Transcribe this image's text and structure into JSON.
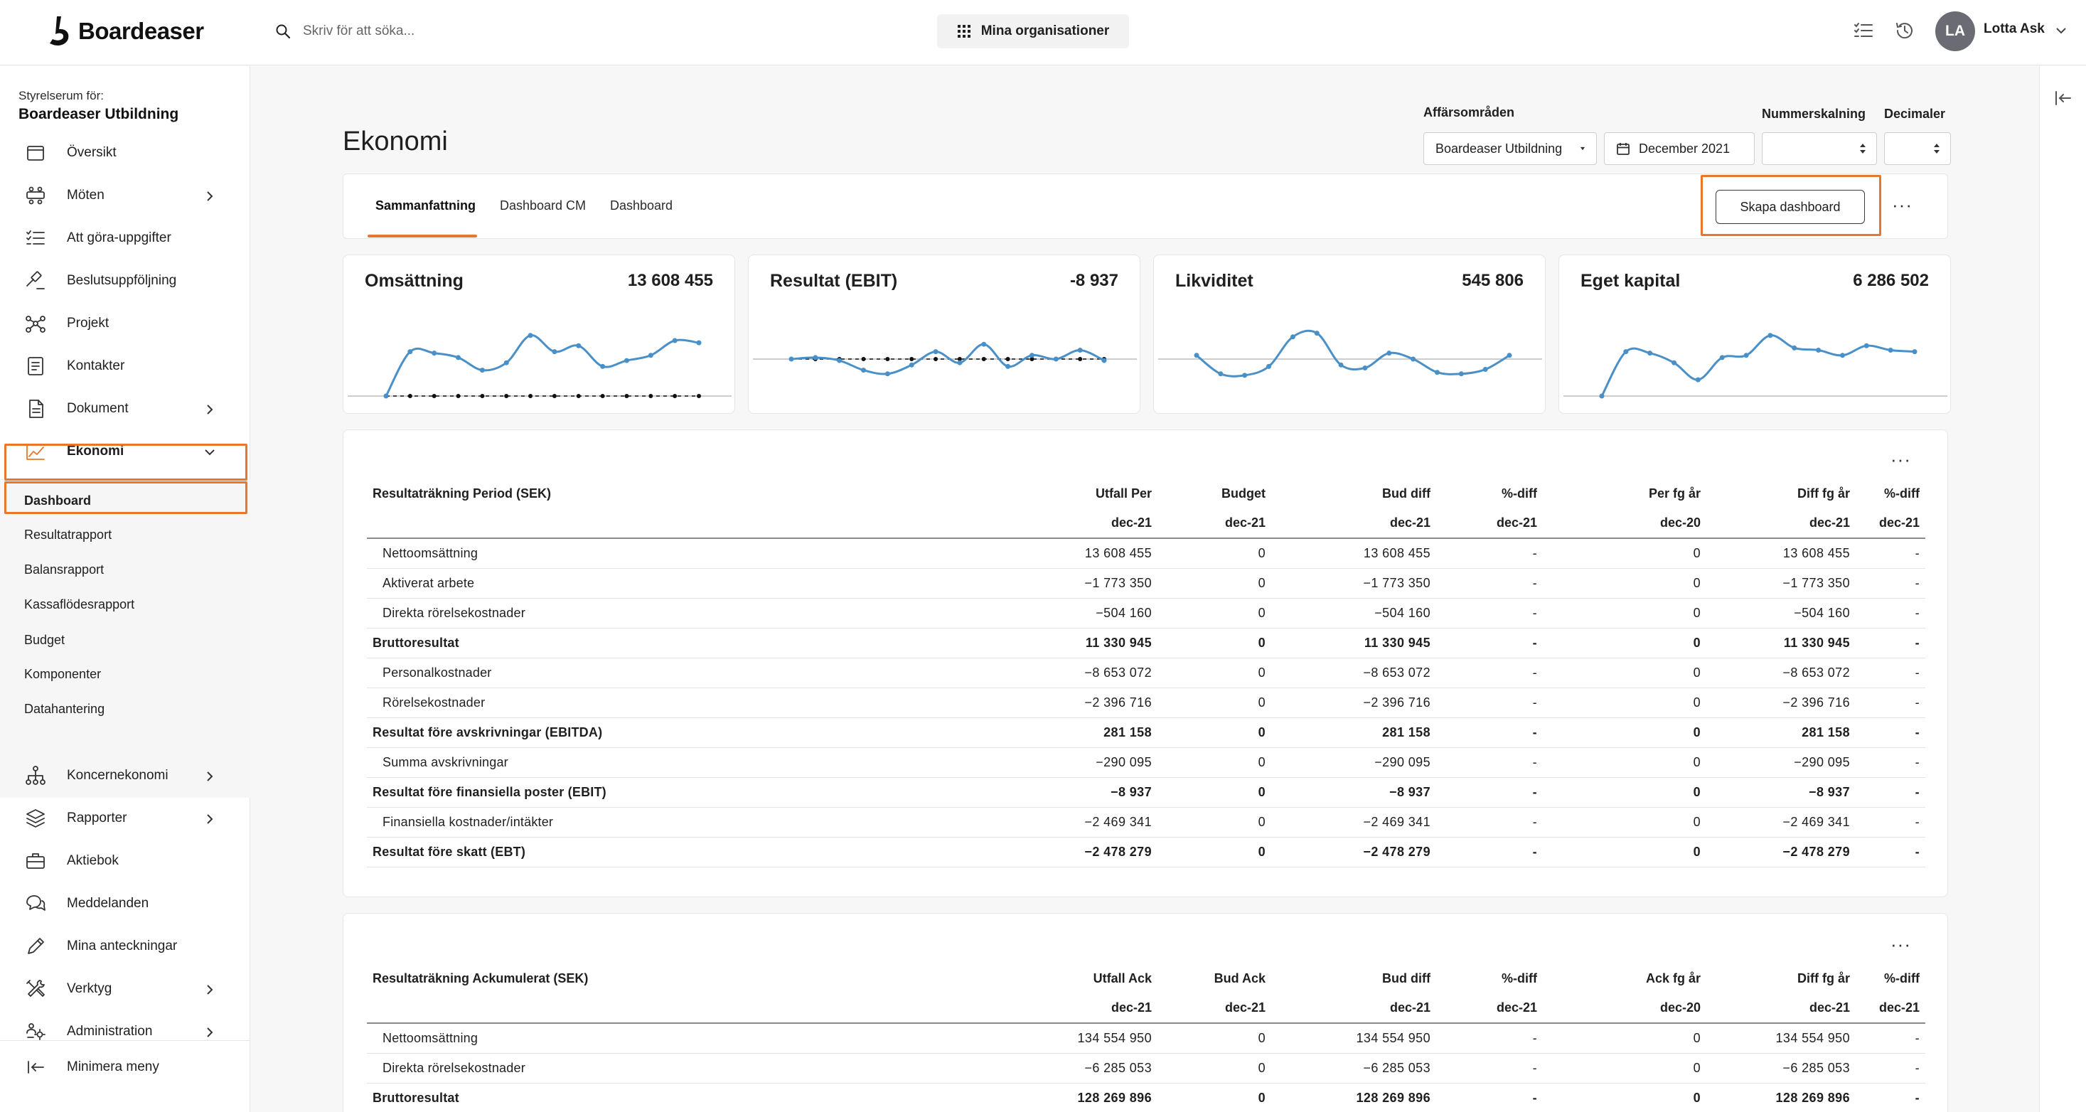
{
  "header": {
    "logo_text": "Boardeaser",
    "search_placeholder": "Skriv för att söka...",
    "org_button": "Mina organisationer",
    "user_initials": "LA",
    "user_name": "Lotta Ask"
  },
  "sidebar": {
    "caption": "Styrelserum för:",
    "org_name": "Boardeaser Utbildning",
    "items": [
      {
        "label": "Översikt",
        "icon": "calendar-icon",
        "chevron": false
      },
      {
        "label": "Möten",
        "icon": "meeting-icon",
        "chevron": true
      },
      {
        "label": "Att göra-uppgifter",
        "icon": "tasks-icon",
        "chevron": false
      },
      {
        "label": "Beslutsuppföljning",
        "icon": "gavel-icon",
        "chevron": false
      },
      {
        "label": "Projekt",
        "icon": "project-icon",
        "chevron": false
      },
      {
        "label": "Kontakter",
        "icon": "contacts-icon",
        "chevron": false
      },
      {
        "label": "Dokument",
        "icon": "document-icon",
        "chevron": true
      },
      {
        "label": "Ekonomi",
        "icon": "chart-line-icon",
        "chevron": true,
        "expanded": true
      },
      {
        "label": "Koncernekonomi",
        "icon": "org-tree-icon",
        "chevron": true
      },
      {
        "label": "Rapporter",
        "icon": "layers-icon",
        "chevron": true
      },
      {
        "label": "Aktiebok",
        "icon": "briefcase-icon",
        "chevron": false
      },
      {
        "label": "Meddelanden",
        "icon": "chat-icon",
        "chevron": false
      },
      {
        "label": "Mina anteckningar",
        "icon": "pen-icon",
        "chevron": false
      },
      {
        "label": "Verktyg",
        "icon": "tools-icon",
        "chevron": true
      },
      {
        "label": "Administration",
        "icon": "admin-icon",
        "chevron": true
      }
    ],
    "subitems": [
      "Dashboard",
      "Resultatrapport",
      "Balansrapport",
      "Kassaflödesrapport",
      "Budget",
      "Komponenter",
      "Datahantering"
    ],
    "minimize": "Minimera meny"
  },
  "page": {
    "title": "Ekonomi",
    "business_area_label": "Affärsområden",
    "business_area_value": "Boardeaser Utbildning",
    "date_value": "December 2021",
    "number_scale_label": "Nummerskalning",
    "decimals_label": "Decimaler"
  },
  "tabs": [
    "Sammanfattning",
    "Dashboard CM",
    "Dashboard"
  ],
  "create_dashboard": "Skapa dashboard",
  "more_glyph": "···",
  "colors": {
    "accent": "#e8772e",
    "line": "#4a90c8"
  },
  "kpis": [
    {
      "title": "Omsättning",
      "value": "13 608 455",
      "series": [
        0.0,
        0.6,
        0.58,
        0.52,
        0.35,
        0.45,
        0.82,
        0.6,
        0.68,
        0.4,
        0.48,
        0.55,
        0.75,
        0.72
      ],
      "baseline": 0.0,
      "baseline_dashed": true
    },
    {
      "title": "Resultat (EBIT)",
      "value": "-8 937",
      "series": [
        0.5,
        0.52,
        0.48,
        0.35,
        0.3,
        0.42,
        0.6,
        0.45,
        0.7,
        0.4,
        0.55,
        0.5,
        0.62,
        0.48
      ],
      "baseline": 0.5,
      "baseline_dashed": true
    },
    {
      "title": "Likviditet",
      "value": "545 806",
      "series": [
        0.55,
        0.3,
        0.28,
        0.4,
        0.8,
        0.85,
        0.42,
        0.38,
        0.58,
        0.5,
        0.32,
        0.3,
        0.36,
        0.55
      ],
      "baseline": 0.5,
      "baseline_dashed": false
    },
    {
      "title": "Eget kapital",
      "value": "6 286 502",
      "series": [
        0.0,
        0.6,
        0.58,
        0.45,
        0.22,
        0.52,
        0.55,
        0.82,
        0.65,
        0.62,
        0.55,
        0.68,
        0.62,
        0.6
      ],
      "baseline": 0.0,
      "baseline_dashed": false
    }
  ],
  "table_period": {
    "title": "Resultaträkning Period (SEK)",
    "columns": [
      "Utfall Per",
      "Budget",
      "Bud diff",
      "%-diff",
      "Per fg år",
      "Diff fg år",
      "%-diff"
    ],
    "subcolumns": [
      "dec-21",
      "dec-21",
      "dec-21",
      "dec-21",
      "dec-20",
      "dec-21",
      "dec-21"
    ],
    "rows": [
      {
        "label": "Nettoomsättning",
        "bold": false,
        "values": [
          "13 608 455",
          "0",
          "13 608 455",
          "-",
          "0",
          "13 608 455",
          "-"
        ]
      },
      {
        "label": "Aktiverat arbete",
        "bold": false,
        "values": [
          "−1 773 350",
          "0",
          "−1 773 350",
          "-",
          "0",
          "−1 773 350",
          "-"
        ]
      },
      {
        "label": "Direkta rörelsekostnader",
        "bold": false,
        "values": [
          "−504 160",
          "0",
          "−504 160",
          "-",
          "0",
          "−504 160",
          "-"
        ]
      },
      {
        "label": "Bruttoresultat",
        "bold": true,
        "values": [
          "11 330 945",
          "0",
          "11 330 945",
          "-",
          "0",
          "11 330 945",
          "-"
        ]
      },
      {
        "label": "Personalkostnader",
        "bold": false,
        "values": [
          "−8 653 072",
          "0",
          "−8 653 072",
          "-",
          "0",
          "−8 653 072",
          "-"
        ]
      },
      {
        "label": "Rörelsekostnader",
        "bold": false,
        "values": [
          "−2 396 716",
          "0",
          "−2 396 716",
          "-",
          "0",
          "−2 396 716",
          "-"
        ]
      },
      {
        "label": "Resultat före avskrivningar (EBITDA)",
        "bold": true,
        "values": [
          "281 158",
          "0",
          "281 158",
          "-",
          "0",
          "281 158",
          "-"
        ]
      },
      {
        "label": "Summa avskrivningar",
        "bold": false,
        "values": [
          "−290 095",
          "0",
          "−290 095",
          "-",
          "0",
          "−290 095",
          "-"
        ]
      },
      {
        "label": "Resultat före finansiella poster (EBIT)",
        "bold": true,
        "values": [
          "−8 937",
          "0",
          "−8 937",
          "-",
          "0",
          "−8 937",
          "-"
        ]
      },
      {
        "label": "Finansiella kostnader/intäkter",
        "bold": false,
        "values": [
          "−2 469 341",
          "0",
          "−2 469 341",
          "-",
          "0",
          "−2 469 341",
          "-"
        ]
      },
      {
        "label": "Resultat före skatt (EBT)",
        "bold": true,
        "values": [
          "−2 478 279",
          "0",
          "−2 478 279",
          "-",
          "0",
          "−2 478 279",
          "-"
        ]
      }
    ]
  },
  "table_ack": {
    "title": "Resultaträkning Ackumulerat (SEK)",
    "columns": [
      "Utfall Ack",
      "Bud Ack",
      "Bud diff",
      "%-diff",
      "Ack fg år",
      "Diff fg år",
      "%-diff"
    ],
    "subcolumns": [
      "dec-21",
      "dec-21",
      "dec-21",
      "dec-21",
      "dec-20",
      "dec-21",
      "dec-21"
    ],
    "rows": [
      {
        "label": "Nettoomsättning",
        "bold": false,
        "values": [
          "134 554 950",
          "0",
          "134 554 950",
          "-",
          "0",
          "134 554 950",
          "-"
        ]
      },
      {
        "label": "Direkta rörelsekostnader",
        "bold": false,
        "values": [
          "−6 285 053",
          "0",
          "−6 285 053",
          "-",
          "0",
          "−6 285 053",
          "-"
        ]
      },
      {
        "label": "Bruttoresultat",
        "bold": true,
        "values": [
          "128 269 896",
          "0",
          "128 269 896",
          "-",
          "0",
          "128 269 896",
          "-"
        ]
      }
    ]
  }
}
